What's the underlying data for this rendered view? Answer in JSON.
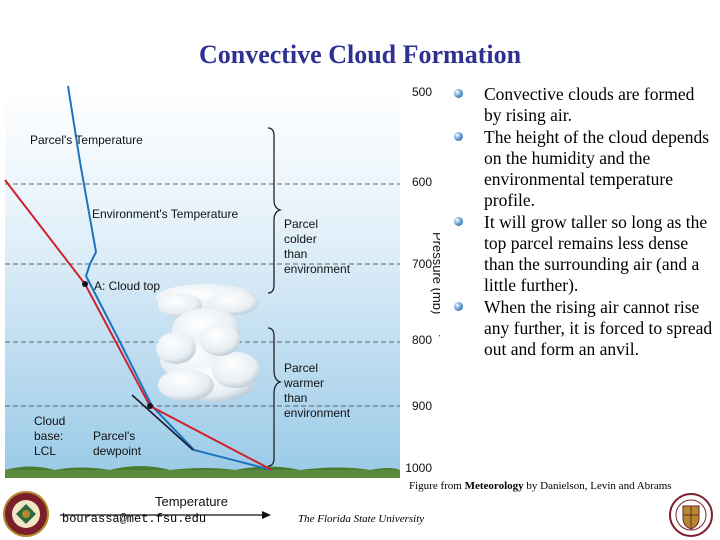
{
  "slide": {
    "title": "Convective Cloud Formation",
    "bullets": [
      "Convective clouds are formed by rising air.",
      "The height of the cloud depends on the humidity and the environmental temperature profile.",
      "It will grow taller so long as the top parcel remains less dense than the surrounding air (and a little further).",
      "When the rising air cannot rise any further, it is forced to spread out and form an anvil."
    ],
    "caption_prefix": "Figure from ",
    "caption_book": "Meteorology",
    "caption_suffix": " by Danielson, Levin and Abrams",
    "email": "bourassa@met.fsu.edu",
    "university": "The Florida State University"
  },
  "figure": {
    "pressure_axis_label": "Pressure (mb)",
    "pressure_ticks": [
      "500",
      "600",
      "700",
      "800",
      "900",
      "1000"
    ],
    "parcel_temp_label": "Parcel's Temperature",
    "env_temp_label": "Environment's Temperature",
    "cloud_top_label": "A: Cloud top",
    "parcel_colder_lines": [
      "Parcel",
      "colder",
      "than",
      "environment"
    ],
    "parcel_warmer_lines": [
      "Parcel",
      "warmer",
      "than",
      "environment"
    ],
    "cloud_base_lines": [
      "Cloud",
      "base:",
      "LCL"
    ],
    "dewpoint_lines": [
      "Parcel's",
      "dewpoint"
    ],
    "x_axis_label": "Temperature",
    "colors": {
      "title": "#2e3192",
      "parcel_line": "#d0202e",
      "environment_line": "#1e73be",
      "dewpoint_line": "#1a1a2e",
      "sky_top": "#ffffff",
      "sky_bottom": "#a9cfe9"
    }
  }
}
